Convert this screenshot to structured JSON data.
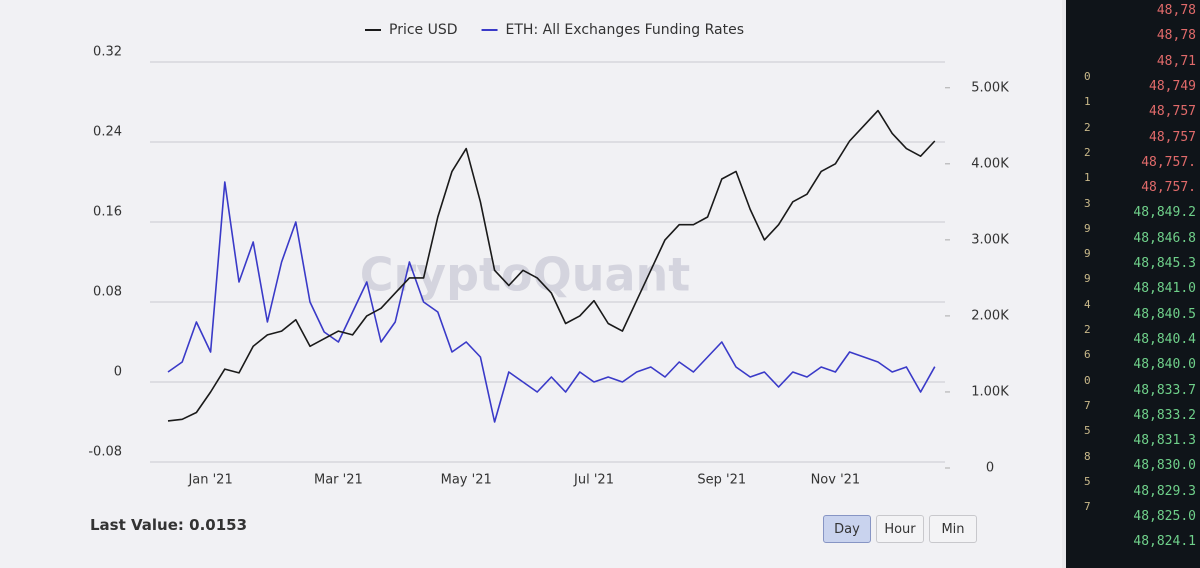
{
  "chart_data": {
    "type": "line",
    "watermark": "CryptoQuant",
    "categories": [
      null,
      null,
      null,
      "Jan '21",
      null,
      null,
      null,
      null,
      null,
      null,
      null,
      null,
      "Mar '21",
      null,
      null,
      null,
      null,
      null,
      null,
      null,
      null,
      "May '21",
      null,
      null,
      null,
      null,
      null,
      null,
      null,
      null,
      "Jul '21",
      null,
      null,
      null,
      null,
      null,
      null,
      null,
      null,
      "Sep '21",
      null,
      null,
      null,
      null,
      null,
      null,
      null,
      "Nov '21",
      null,
      null,
      null,
      null,
      null,
      null,
      null
    ],
    "series": [
      {
        "name": "Price USD",
        "color": "#1a1a1a",
        "axis": "y2",
        "values": [
          620,
          640,
          730,
          1000,
          1300,
          1250,
          1600,
          1750,
          1800,
          1950,
          1600,
          1700,
          1800,
          1750,
          2000,
          2100,
          2300,
          2500,
          2500,
          3300,
          3900,
          4200,
          3500,
          2600,
          2400,
          2600,
          2500,
          2300,
          1900,
          2000,
          2200,
          1900,
          1800,
          2200,
          2600,
          3000,
          3200,
          3200,
          3300,
          3800,
          3900,
          3400,
          3000,
          3200,
          3500,
          3600,
          3900,
          4000,
          4300,
          4500,
          4700,
          4400,
          4200,
          4100,
          4300
        ]
      },
      {
        "name": "ETH: All Exchanges Funding Rates",
        "color": "#3a3ac8",
        "values": [
          0.01,
          0.02,
          0.06,
          0.03,
          0.2,
          0.1,
          0.14,
          0.06,
          0.12,
          0.16,
          0.08,
          0.05,
          0.04,
          0.07,
          0.1,
          0.04,
          0.06,
          0.12,
          0.08,
          0.07,
          0.03,
          0.04,
          0.025,
          -0.04,
          0.01,
          0.0,
          -0.01,
          0.005,
          -0.01,
          0.01,
          0.0,
          0.005,
          0.0,
          0.01,
          0.015,
          0.005,
          0.02,
          0.01,
          0.025,
          0.04,
          0.015,
          0.005,
          0.01,
          -0.005,
          0.01,
          0.005,
          0.015,
          0.01,
          0.03,
          0.025,
          0.02,
          0.01,
          0.015,
          -0.01,
          0.0153
        ]
      }
    ],
    "ylim": [
      -0.08,
      0.32
    ],
    "yticks": [
      -0.08,
      0,
      0.08,
      0.16,
      0.24,
      0.32
    ],
    "y2lim": [
      0,
      5260
    ],
    "y2ticks": [
      0,
      {
        "value": 1000,
        "label": "1.00K"
      },
      {
        "value": 2000,
        "label": "2.00K"
      },
      {
        "value": 3000,
        "label": "3.00K"
      },
      {
        "value": 4000,
        "label": "4.00K"
      },
      {
        "value": 5000,
        "label": "5.00K"
      }
    ],
    "grid": true,
    "last_value": "Last Value: 0.0153",
    "buttons": [
      "Day",
      "Hour",
      "Min"
    ],
    "active_button": 0
  },
  "side_panel": {
    "prices": [
      "48,78",
      "48,78",
      "48,71",
      "48,749",
      "48,757",
      "48,757",
      "48,757.",
      "48,757.",
      "48,849.2",
      "48,846.8",
      "48,845.3",
      "48,841.0",
      "48,840.5",
      "48,840.4",
      "48,840.0",
      "48,833.7",
      "48,833.2",
      "48,831.3",
      "48,830.0",
      "48,829.3",
      "48,825.0",
      "48,824.1"
    ],
    "ask_count": 8,
    "left_digits": [
      "0",
      "1",
      "2",
      "2",
      "1",
      "3",
      "9",
      "9",
      "9",
      "4",
      "2",
      "6",
      "0",
      "7",
      "5",
      "8",
      "5",
      "7"
    ]
  }
}
